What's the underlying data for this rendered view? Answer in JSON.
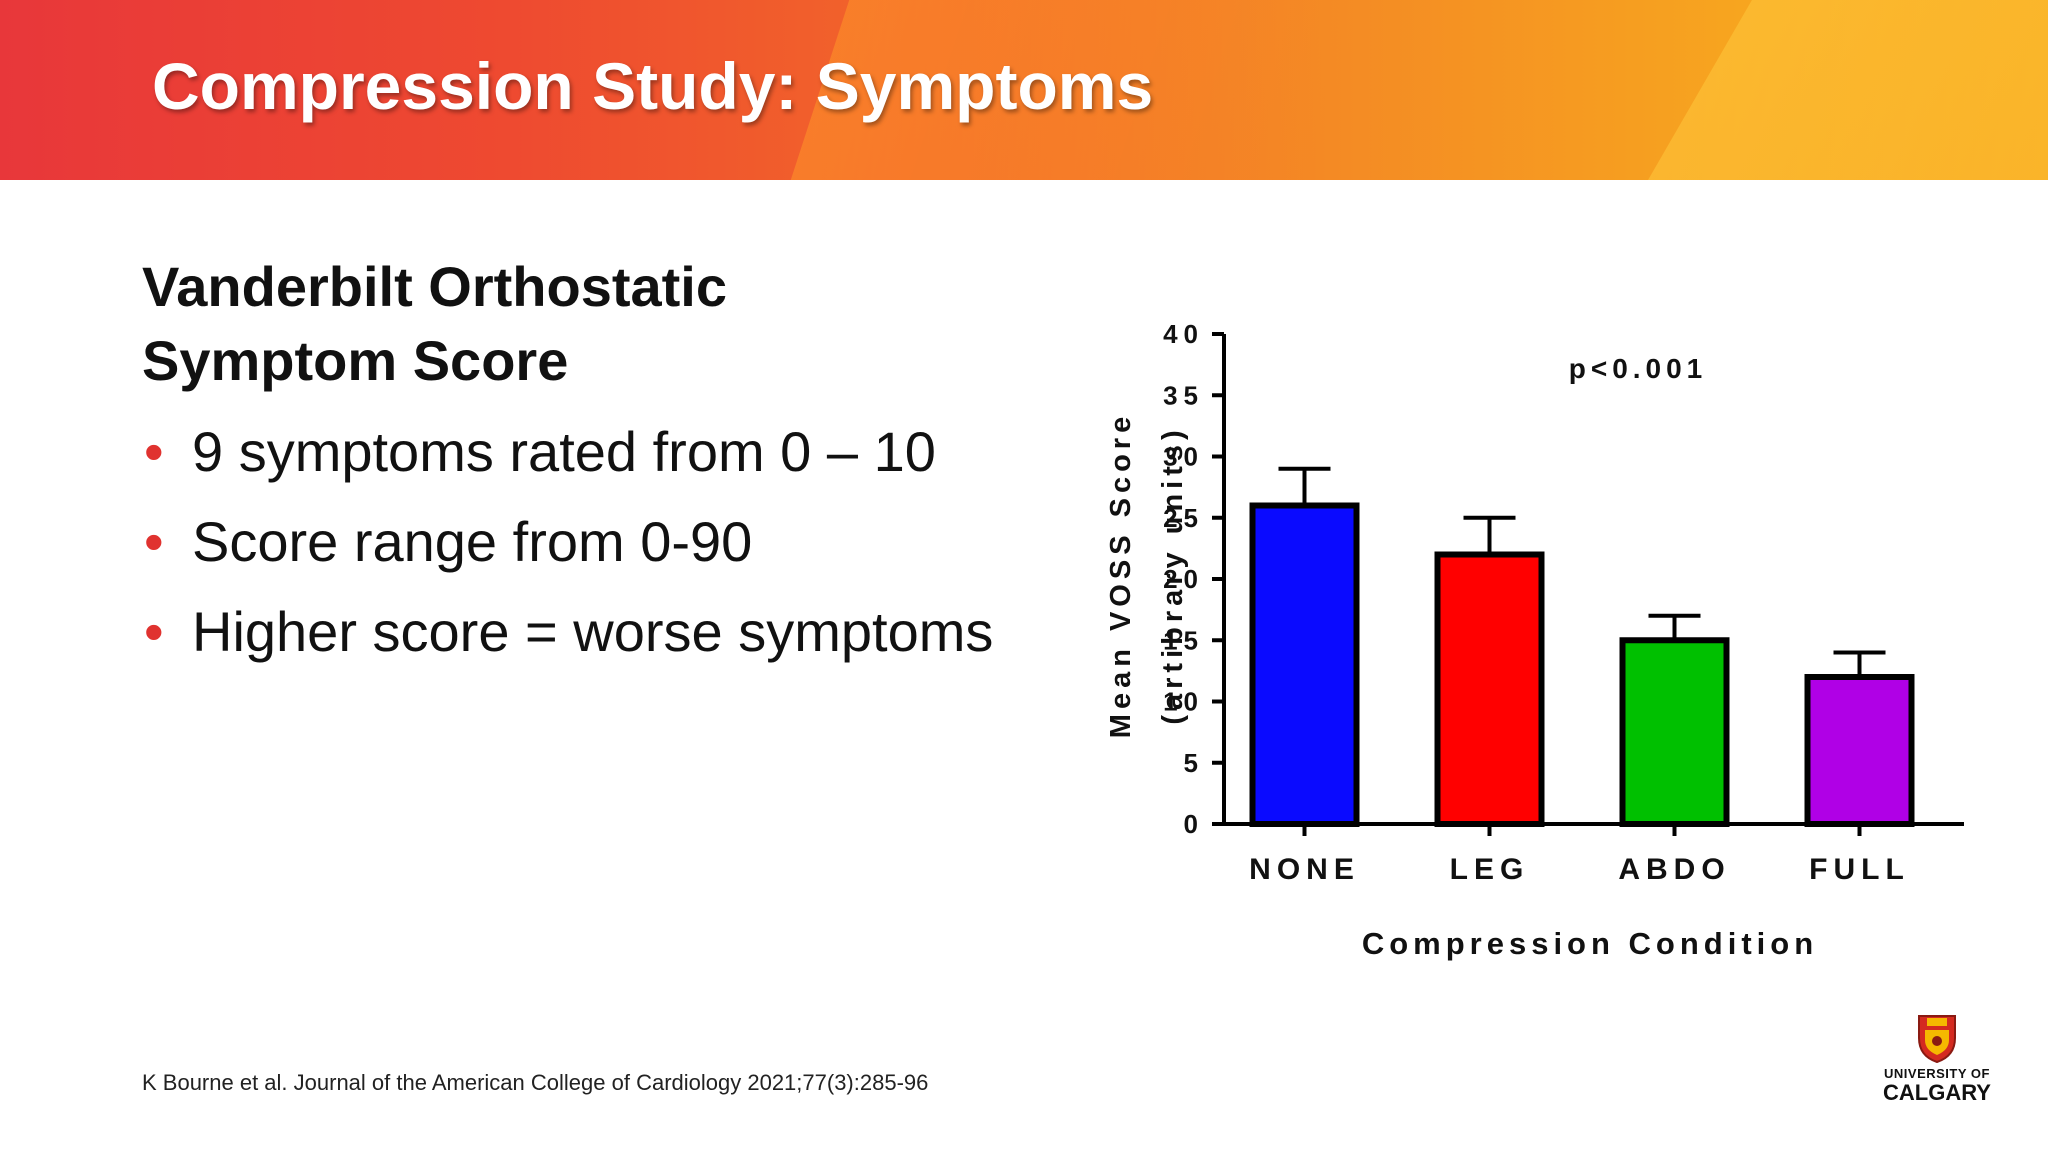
{
  "header": {
    "title": "Compression Study: Symptoms"
  },
  "content": {
    "heading": "Vanderbilt Orthostatic Symptom Score",
    "bullets": [
      "9 symptoms rated from 0 – 10",
      "Score range from 0-90",
      "Higher score = worse symptoms"
    ]
  },
  "footer": {
    "citation": "K Bourne et al.  Journal of the American College of Cardiology 2021;77(3):285-96"
  },
  "logo": {
    "line1": "UNIVERSITY OF",
    "line2": "CALGARY",
    "icon": "university-crest-icon"
  },
  "colors": {
    "banner_start": "#e8373a",
    "banner_end": "#f9ad20",
    "bullet": "#e0322f"
  },
  "chart_data": {
    "type": "bar",
    "categories": [
      "NONE",
      "LEG",
      "ABDO",
      "FULL"
    ],
    "values": [
      26,
      22,
      15,
      12
    ],
    "errors": [
      3,
      3,
      2,
      2
    ],
    "colors": [
      "#0a0aff",
      "#ff0000",
      "#00c000",
      "#b000e6"
    ],
    "ylim": [
      0,
      40
    ],
    "yticks": [
      0,
      5,
      10,
      15,
      20,
      25,
      30,
      35,
      40
    ],
    "ylabel": "Mean VOSS Score",
    "ylabel2": "(artibrary units)",
    "xlabel": "Compression Condition",
    "annotation": "p<0.001",
    "grid": false
  }
}
